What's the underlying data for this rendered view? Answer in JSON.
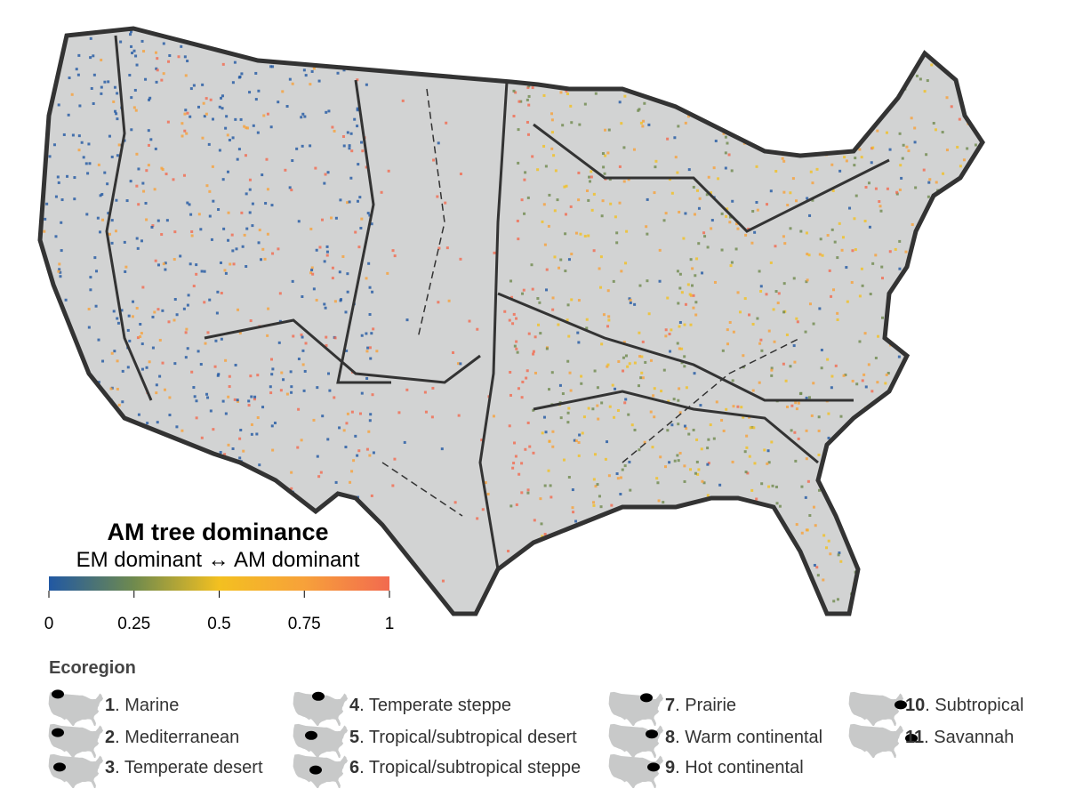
{
  "map": {
    "title": "AM tree dominance",
    "subtitle": "EM dominant ↔ AM dominant",
    "colorbar": {
      "range": [
        0,
        1
      ],
      "ticks": [
        0,
        0.25,
        0.5,
        0.75,
        1
      ],
      "colors": [
        "#2158a3",
        "#6f8a4e",
        "#f3c020",
        "#f7a13a",
        "#f26a4f"
      ]
    },
    "legend": {
      "title": "Ecoregion",
      "items": [
        {
          "number": "1",
          "text": ". Marine"
        },
        {
          "number": "2",
          "text": ". Mediterranean"
        },
        {
          "number": "3",
          "text": ". Temperate desert"
        },
        {
          "number": "4",
          "text": ". Temperate steppe"
        },
        {
          "number": "5",
          "text": ". Tropical/subtropical desert"
        },
        {
          "number": "6",
          "text": ". Tropical/subtropical steppe"
        },
        {
          "number": "7",
          "text": ". Prairie"
        },
        {
          "number": "8",
          "text": ". Warm continental"
        },
        {
          "number": "9",
          "text": ". Hot continental"
        },
        {
          "number": "10",
          "text": ". Subtropical"
        },
        {
          "number": "11",
          "text": ". Savannah"
        }
      ]
    }
  }
}
